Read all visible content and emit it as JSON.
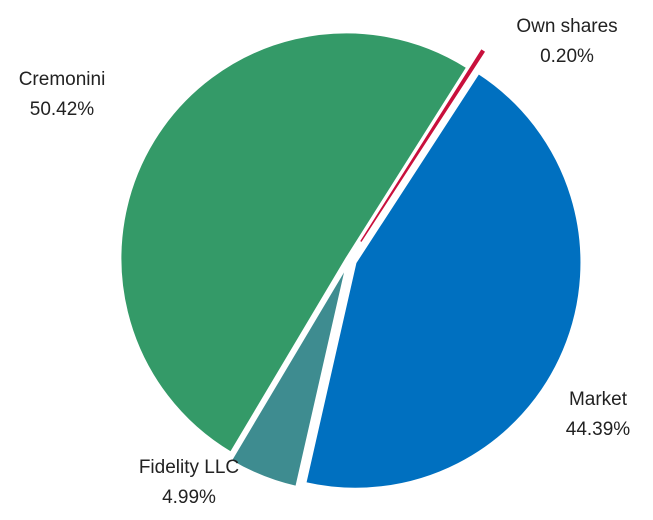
{
  "chart_data": {
    "type": "pie",
    "categories": [
      "Market",
      "Fidelity LLC",
      "Cremonini",
      "Own shares"
    ],
    "values": [
      44.39,
      4.99,
      50.42,
      0.2
    ],
    "value_labels": [
      "44.39%",
      "4.99%",
      "50.42%",
      "0.20%"
    ],
    "colors": [
      "#0070c0",
      "#3e8c90",
      "#349a68",
      "#c8103c"
    ]
  }
}
